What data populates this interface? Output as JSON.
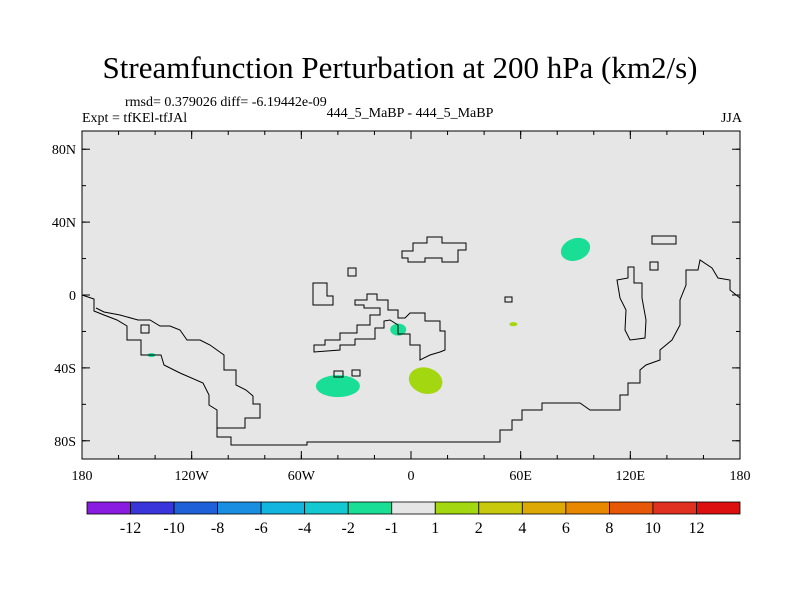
{
  "title": "Streamfunction Perturbation at 200 hPa (km2/s)",
  "stats_line": "rmsd= 0.379026 diff= -6.19442e-09",
  "left_label": "Expt = tfKEl-tfJAl",
  "center_label": "444_5_MaBP - 444_5_MaBP",
  "right_label": "JJA",
  "chart_data": {
    "type": "heatmap",
    "projection": "lon-lat map",
    "background_color": "#e6e6e6",
    "x_ticks": [
      "180",
      "120W",
      "60W",
      "0",
      "60E",
      "120E",
      "180"
    ],
    "y_ticks": [
      "80N",
      "40N",
      "0",
      "40S",
      "80S"
    ],
    "xlim": [
      -180,
      180
    ],
    "ylim": [
      -90,
      90
    ],
    "colorbar": {
      "labels": [
        "-12",
        "-10",
        "-8",
        "-6",
        "-4",
        "-2",
        "-1",
        "1",
        "2",
        "4",
        "6",
        "8",
        "10",
        "12"
      ],
      "colors": [
        "#8a1be0",
        "#3a35db",
        "#1e60d8",
        "#1a8ee0",
        "#12b5e0",
        "#14c8d2",
        "#19de96",
        "#e6e6e6",
        "#a3d70f",
        "#c8c80c",
        "#ddaa05",
        "#e88800",
        "#e65808",
        "#e03020",
        "#dd1010"
      ]
    },
    "anomalies": [
      {
        "lon": 90,
        "lat": 25,
        "value": -1.5
      },
      {
        "lon": -40,
        "lat": -50,
        "value": -1.5
      },
      {
        "lon": -7,
        "lat": -19,
        "value": -1.5
      },
      {
        "lon": -142,
        "lat": -33,
        "value": -1.5
      },
      {
        "lon": 8,
        "lat": -47,
        "value": 1.5
      },
      {
        "lon": 56,
        "lat": -16,
        "value": 1.5
      }
    ]
  }
}
